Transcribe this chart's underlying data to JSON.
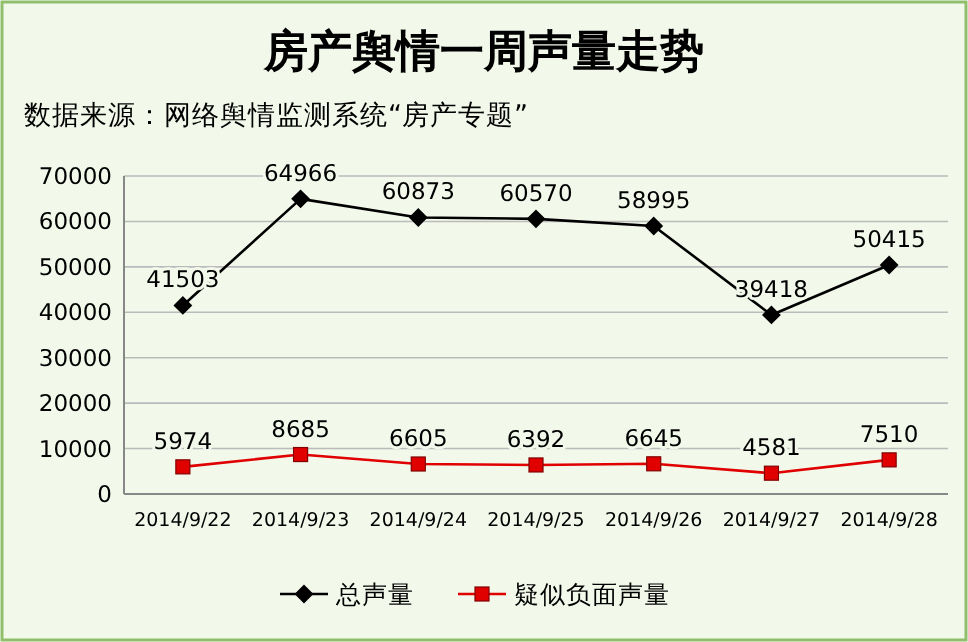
{
  "chart_data": {
    "type": "line",
    "title": "房产舆情一周声量走势",
    "subtitle": "数据来源：网络舆情监测系统“房产专题”",
    "categories": [
      "2014/9/22",
      "2014/9/23",
      "2014/9/24",
      "2014/9/25",
      "2014/9/26",
      "2014/9/27",
      "2014/9/28"
    ],
    "series": [
      {
        "name": "总声量",
        "color": "#000000",
        "marker": "diamond",
        "values": [
          41503,
          64966,
          60873,
          60570,
          58995,
          39418,
          50415
        ]
      },
      {
        "name": "疑似负面声量",
        "color": "#e00000",
        "marker": "square",
        "values": [
          5974,
          8685,
          6605,
          6392,
          6645,
          4581,
          7510
        ]
      }
    ],
    "ylim": [
      0,
      70000
    ],
    "yticks": [
      0,
      10000,
      20000,
      30000,
      40000,
      50000,
      60000,
      70000
    ],
    "grid": "y",
    "legend": "bottom",
    "data_labels": true,
    "line_style": "solid"
  }
}
